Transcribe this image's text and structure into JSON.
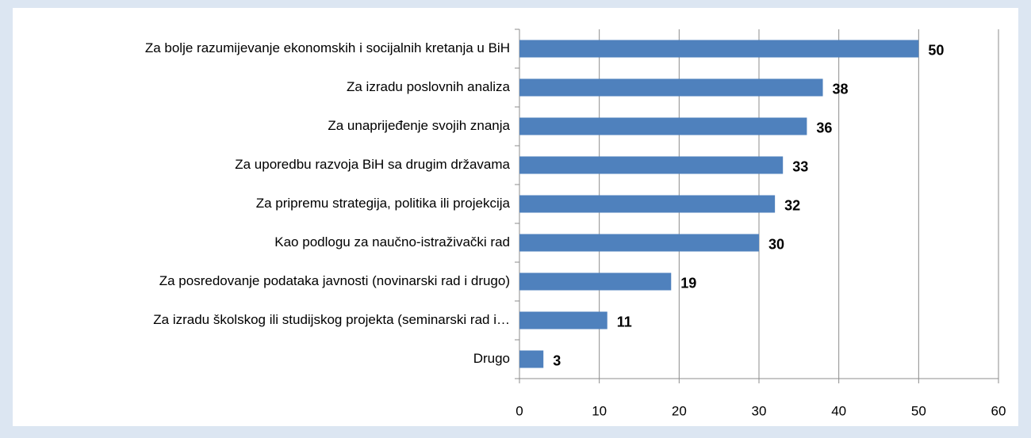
{
  "chart_data": {
    "type": "bar",
    "orientation": "horizontal",
    "categories": [
      "Za bolje razumijevanje ekonomskih i socijalnih kretanja u BiH",
      "Za izradu poslovnih analiza",
      "Za unaprijeđenje svojih znanja",
      "Za uporedbu razvoja BiH sa drugim državama",
      "Za pripremu strategija, politika ili projekcija",
      "Kao podlogu za naučno-istraživački rad",
      "Za posredovanje podataka javnosti (novinarski rad i drugo)",
      "Za izradu školskog ili studijskog projekta (seminarski rad i…",
      "Drugo"
    ],
    "values": [
      50,
      38,
      36,
      33,
      32,
      30,
      19,
      11,
      3
    ],
    "color": "#4f81bd",
    "xlim": [
      0,
      60
    ],
    "xticks": [
      0,
      10,
      20,
      30,
      40,
      50,
      60
    ],
    "grid": true
  }
}
